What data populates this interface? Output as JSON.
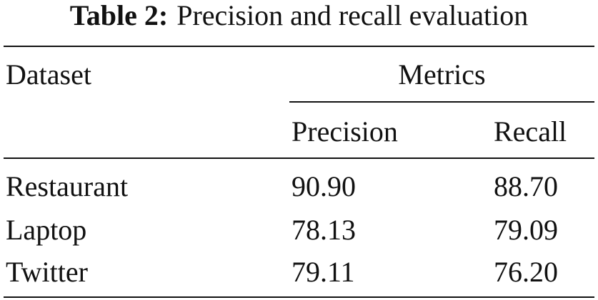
{
  "caption": {
    "label": "Table 2:",
    "text": "Precision and recall evaluation"
  },
  "table": {
    "header": [
      "Dataset",
      "Metrics"
    ],
    "subheader": [
      "Precision",
      "Recall"
    ],
    "rows": [
      [
        "Restaurant",
        "90.90",
        "88.70"
      ],
      [
        "Laptop",
        "78.13",
        "79.09"
      ],
      [
        "Twitter",
        "79.11",
        "76.20"
      ]
    ]
  }
}
